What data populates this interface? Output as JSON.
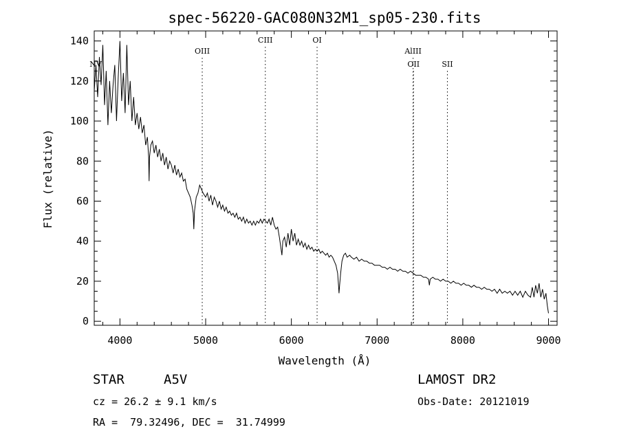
{
  "chart_data": {
    "type": "line",
    "title": "spec-56220-GAC080N32M1_sp05-230.fits",
    "xlabel": "Wavelength (Å)",
    "ylabel": "Flux (relative)",
    "xlim": [
      3700,
      9100
    ],
    "ylim": [
      -2,
      145
    ],
    "xticks": [
      4000,
      5000,
      6000,
      7000,
      8000,
      9000
    ],
    "yticks": [
      0,
      20,
      40,
      60,
      80,
      100,
      120,
      140
    ],
    "line_color": "#000000",
    "grid": false,
    "series": [
      {
        "values_xy": [
          [
            3700,
            115
          ],
          [
            3720,
            128
          ],
          [
            3740,
            112
          ],
          [
            3760,
            132
          ],
          [
            3780,
            118
          ],
          [
            3800,
            138
          ],
          [
            3820,
            108
          ],
          [
            3840,
            125
          ],
          [
            3860,
            98
          ],
          [
            3880,
            120
          ],
          [
            3900,
            104
          ],
          [
            3920,
            118
          ],
          [
            3940,
            128
          ],
          [
            3960,
            100
          ],
          [
            3980,
            122
          ],
          [
            4000,
            140
          ],
          [
            4020,
            110
          ],
          [
            4040,
            124
          ],
          [
            4060,
            104
          ],
          [
            4080,
            138
          ],
          [
            4100,
            108
          ],
          [
            4120,
            120
          ],
          [
            4140,
            100
          ],
          [
            4160,
            112
          ],
          [
            4180,
            98
          ],
          [
            4200,
            104
          ],
          [
            4220,
            96
          ],
          [
            4240,
            102
          ],
          [
            4260,
            94
          ],
          [
            4280,
            98
          ],
          [
            4300,
            88
          ],
          [
            4320,
            92
          ],
          [
            4335,
            82
          ],
          [
            4340,
            70
          ],
          [
            4345,
            82
          ],
          [
            4360,
            88
          ],
          [
            4380,
            90
          ],
          [
            4400,
            84
          ],
          [
            4420,
            88
          ],
          [
            4440,
            82
          ],
          [
            4460,
            86
          ],
          [
            4480,
            80
          ],
          [
            4500,
            84
          ],
          [
            4520,
            78
          ],
          [
            4540,
            82
          ],
          [
            4560,
            76
          ],
          [
            4580,
            80
          ],
          [
            4600,
            78
          ],
          [
            4620,
            74
          ],
          [
            4640,
            78
          ],
          [
            4660,
            73
          ],
          [
            4680,
            76
          ],
          [
            4700,
            72
          ],
          [
            4720,
            74
          ],
          [
            4740,
            70
          ],
          [
            4760,
            71
          ],
          [
            4780,
            66
          ],
          [
            4800,
            64
          ],
          [
            4820,
            62
          ],
          [
            4840,
            58
          ],
          [
            4855,
            54
          ],
          [
            4862,
            46
          ],
          [
            4870,
            55
          ],
          [
            4890,
            62
          ],
          [
            4910,
            64
          ],
          [
            4930,
            68
          ],
          [
            4950,
            66
          ],
          [
            4970,
            64
          ],
          [
            5000,
            62
          ],
          [
            5020,
            64
          ],
          [
            5040,
            60
          ],
          [
            5060,
            63
          ],
          [
            5080,
            58
          ],
          [
            5100,
            62
          ],
          [
            5120,
            60
          ],
          [
            5140,
            57
          ],
          [
            5160,
            60
          ],
          [
            5180,
            56
          ],
          [
            5200,
            58
          ],
          [
            5220,
            55
          ],
          [
            5240,
            57
          ],
          [
            5260,
            54
          ],
          [
            5280,
            55
          ],
          [
            5300,
            53
          ],
          [
            5320,
            54
          ],
          [
            5340,
            52
          ],
          [
            5360,
            54
          ],
          [
            5380,
            51
          ],
          [
            5400,
            52
          ],
          [
            5420,
            50
          ],
          [
            5440,
            52
          ],
          [
            5460,
            49
          ],
          [
            5480,
            51
          ],
          [
            5500,
            49
          ],
          [
            5520,
            50
          ],
          [
            5540,
            48
          ],
          [
            5560,
            50
          ],
          [
            5580,
            48
          ],
          [
            5600,
            50
          ],
          [
            5620,
            49
          ],
          [
            5640,
            51
          ],
          [
            5660,
            49
          ],
          [
            5680,
            51
          ],
          [
            5700,
            50
          ],
          [
            5720,
            49
          ],
          [
            5740,
            51
          ],
          [
            5760,
            48
          ],
          [
            5780,
            52
          ],
          [
            5800,
            48
          ],
          [
            5820,
            46
          ],
          [
            5840,
            47
          ],
          [
            5860,
            42
          ],
          [
            5880,
            36
          ],
          [
            5890,
            33
          ],
          [
            5900,
            40
          ],
          [
            5920,
            42
          ],
          [
            5940,
            37
          ],
          [
            5960,
            44
          ],
          [
            5980,
            38
          ],
          [
            6000,
            46
          ],
          [
            6020,
            40
          ],
          [
            6040,
            44
          ],
          [
            6060,
            38
          ],
          [
            6080,
            41
          ],
          [
            6100,
            38
          ],
          [
            6120,
            40
          ],
          [
            6140,
            37
          ],
          [
            6160,
            39
          ],
          [
            6180,
            36
          ],
          [
            6200,
            38
          ],
          [
            6220,
            36
          ],
          [
            6240,
            37
          ],
          [
            6260,
            35
          ],
          [
            6280,
            36
          ],
          [
            6300,
            35
          ],
          [
            6320,
            36
          ],
          [
            6340,
            34
          ],
          [
            6360,
            35
          ],
          [
            6380,
            34
          ],
          [
            6400,
            33
          ],
          [
            6420,
            34
          ],
          [
            6440,
            32
          ],
          [
            6460,
            33
          ],
          [
            6480,
            32
          ],
          [
            6500,
            30
          ],
          [
            6520,
            28
          ],
          [
            6540,
            24
          ],
          [
            6550,
            18
          ],
          [
            6556,
            14
          ],
          [
            6563,
            18
          ],
          [
            6575,
            24
          ],
          [
            6590,
            30
          ],
          [
            6610,
            33
          ],
          [
            6630,
            34
          ],
          [
            6650,
            32
          ],
          [
            6680,
            33
          ],
          [
            6700,
            32
          ],
          [
            6730,
            31
          ],
          [
            6760,
            32
          ],
          [
            6790,
            30
          ],
          [
            6820,
            31
          ],
          [
            6850,
            30
          ],
          [
            6880,
            30
          ],
          [
            6910,
            29
          ],
          [
            6940,
            29
          ],
          [
            6970,
            28
          ],
          [
            7000,
            28
          ],
          [
            7030,
            28
          ],
          [
            7060,
            27
          ],
          [
            7090,
            27
          ],
          [
            7120,
            26
          ],
          [
            7150,
            27
          ],
          [
            7180,
            26
          ],
          [
            7210,
            26
          ],
          [
            7240,
            25
          ],
          [
            7270,
            26
          ],
          [
            7300,
            25
          ],
          [
            7330,
            25
          ],
          [
            7360,
            24
          ],
          [
            7390,
            25
          ],
          [
            7420,
            24
          ],
          [
            7450,
            23
          ],
          [
            7480,
            23
          ],
          [
            7510,
            23
          ],
          [
            7540,
            22
          ],
          [
            7570,
            22
          ],
          [
            7600,
            21
          ],
          [
            7610,
            18
          ],
          [
            7620,
            21
          ],
          [
            7650,
            22
          ],
          [
            7680,
            21
          ],
          [
            7710,
            21
          ],
          [
            7740,
            20
          ],
          [
            7770,
            21
          ],
          [
            7800,
            20
          ],
          [
            7830,
            20
          ],
          [
            7860,
            19
          ],
          [
            7890,
            20
          ],
          [
            7920,
            19
          ],
          [
            7950,
            19
          ],
          [
            7980,
            18
          ],
          [
            8010,
            19
          ],
          [
            8040,
            18
          ],
          [
            8070,
            18
          ],
          [
            8100,
            17
          ],
          [
            8130,
            18
          ],
          [
            8160,
            17
          ],
          [
            8190,
            17
          ],
          [
            8220,
            16
          ],
          [
            8250,
            17
          ],
          [
            8280,
            16
          ],
          [
            8310,
            16
          ],
          [
            8340,
            15
          ],
          [
            8370,
            16
          ],
          [
            8400,
            14
          ],
          [
            8430,
            16
          ],
          [
            8460,
            14
          ],
          [
            8490,
            15
          ],
          [
            8520,
            14
          ],
          [
            8550,
            15
          ],
          [
            8580,
            13
          ],
          [
            8610,
            15
          ],
          [
            8640,
            13
          ],
          [
            8670,
            15
          ],
          [
            8700,
            12
          ],
          [
            8730,
            15
          ],
          [
            8760,
            13
          ],
          [
            8790,
            12
          ],
          [
            8810,
            17
          ],
          [
            8830,
            12
          ],
          [
            8850,
            18
          ],
          [
            8870,
            14
          ],
          [
            8890,
            19
          ],
          [
            8910,
            12
          ],
          [
            8930,
            16
          ],
          [
            8950,
            11
          ],
          [
            8970,
            14
          ],
          [
            8985,
            8
          ],
          [
            9000,
            4
          ]
        ]
      }
    ],
    "line_markers": [
      {
        "label": "OIII",
        "x": 4960,
        "row": 1
      },
      {
        "label": "CIII",
        "x": 5696,
        "row": 0
      },
      {
        "label": "OI",
        "x": 6300,
        "row": 0
      },
      {
        "label": "AlIII",
        "x": 7420,
        "row": 1
      },
      {
        "label": "OII",
        "x": 7425,
        "row": 2
      },
      {
        "label": "SII",
        "x": 7820,
        "row": 2
      },
      {
        "label": "NV",
        "x": 3700,
        "row": 2
      }
    ]
  },
  "info": {
    "object_class": "STAR",
    "subclass": "A5V",
    "survey": "LAMOST DR2",
    "cz": "cz = 26.2 ± 9.1 km/s",
    "obs_date": "Obs-Date: 20121019",
    "coords": "RA =  79.32496, DEC =  31.74999"
  }
}
